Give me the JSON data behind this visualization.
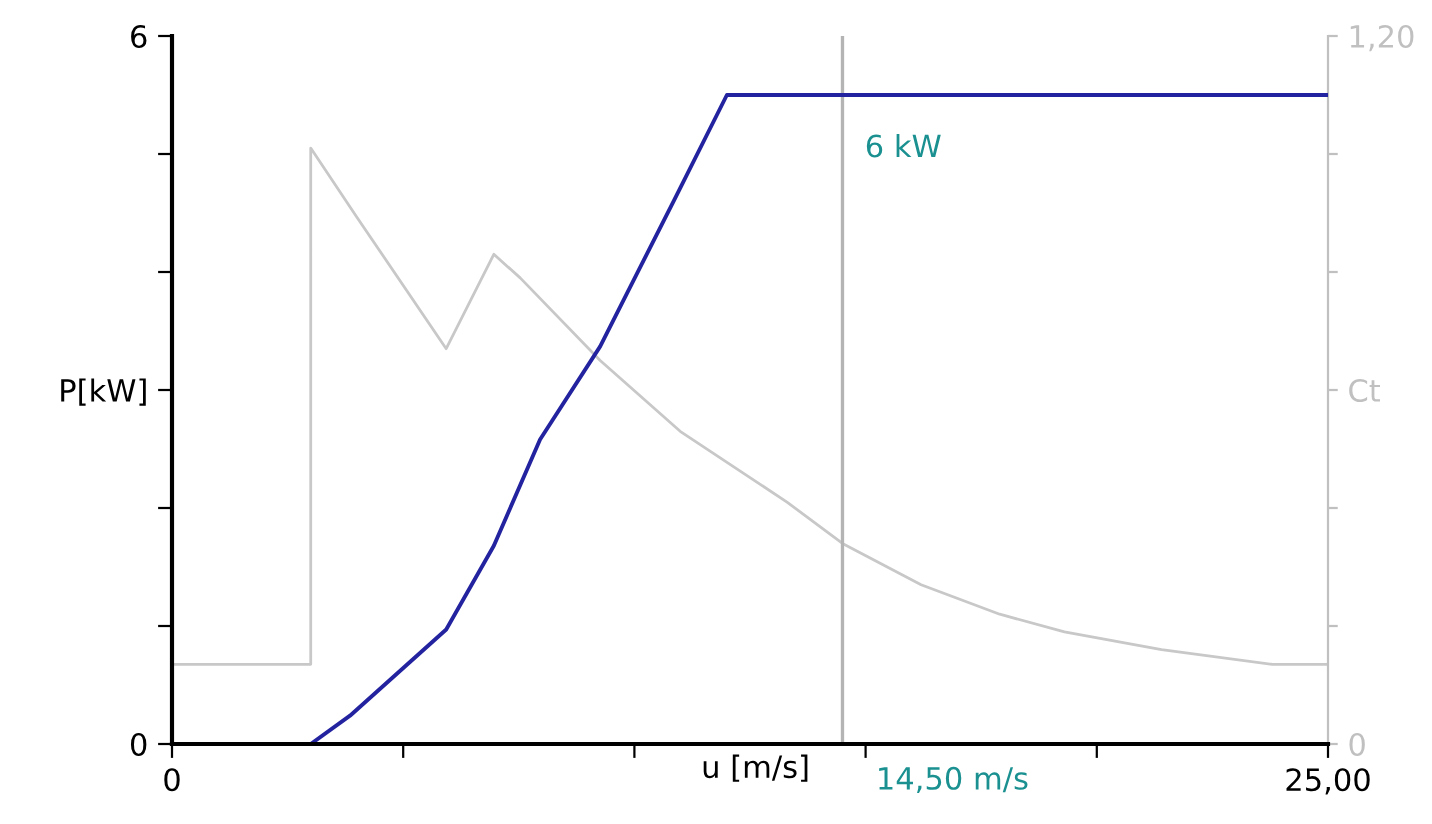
{
  "chart_data": {
    "type": "line",
    "xlabel": "u [m/s]",
    "xlim": [
      0,
      25
    ],
    "xticks": [
      0,
      {
        "value": 5,
        "label": null
      },
      {
        "value": 10,
        "label": null
      },
      {
        "value": 15,
        "label": null
      },
      {
        "value": 20,
        "label": null
      },
      {
        "value": 25,
        "label": "25,00"
      }
    ],
    "ylim": [
      0,
      6
    ],
    "yticks": [
      0,
      {
        "value": 1,
        "label": null
      },
      {
        "value": 2,
        "label": null
      },
      {
        "value": 3,
        "label": "P[kW]"
      },
      {
        "value": 4,
        "label": null
      },
      {
        "value": 5,
        "label": null
      },
      6
    ],
    "y2lim": [
      0,
      1.2
    ],
    "y2ticks": [
      0,
      {
        "value": 0.2,
        "label": null
      },
      {
        "value": 0.4,
        "label": null
      },
      {
        "value": 0.6,
        "label": "Ct"
      },
      {
        "value": 0.8,
        "label": null
      },
      {
        "value": 1.0,
        "label": null
      },
      {
        "value": 1.2,
        "label": "1,20"
      }
    ],
    "series": [
      {
        "color": "#c8c8c8",
        "axis": "y2",
        "x": [
          0,
          3,
          3,
          3.98,
          5.93,
          6.96,
          7.53,
          9.26,
          10.99,
          13.3,
          14.5,
          16.2,
          17.9,
          19.3,
          21.4,
          23.8,
          25
        ],
        "values": [
          0.135,
          0.135,
          1.01,
          0.895,
          0.67,
          0.83,
          0.79,
          0.65,
          0.53,
          0.41,
          0.34,
          0.27,
          0.22,
          0.19,
          0.16,
          0.135,
          0.135
        ]
      },
      {
        "color": "#2323a0",
        "x": [
          3,
          3.85,
          5.93,
          6.96,
          7.96,
          9.26,
          10.86,
          12,
          25
        ],
        "values": [
          0,
          0.24,
          0.97,
          1.68,
          2.58,
          3.37,
          4.61,
          5.5,
          5.5
        ]
      }
    ],
    "ref_lines": [
      {
        "axis": "x",
        "value": 14.5,
        "label": "14,50 m/s",
        "color": "#b4b4b4"
      }
    ],
    "annotations": [
      {
        "text": "6 kW",
        "x": 14.5,
        "y": 5.5
      }
    ],
    "grid": false
  }
}
